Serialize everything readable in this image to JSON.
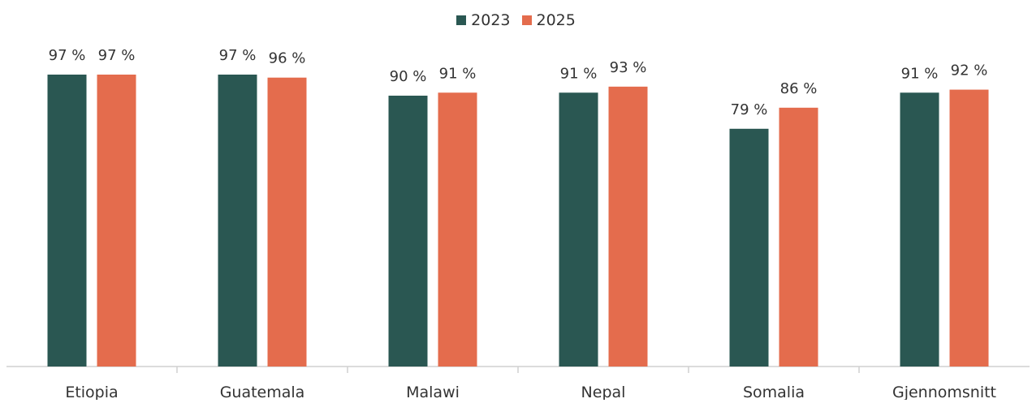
{
  "chart_data": {
    "type": "bar",
    "categories": [
      "Etiopia",
      "Guatemala",
      "Malawi",
      "Nepal",
      "Somalia",
      "Gjennomsnitt"
    ],
    "series": [
      {
        "name": "2023",
        "color": "#2a5752",
        "values": [
          97,
          97,
          90,
          91,
          79,
          91
        ],
        "labels": [
          "97 %",
          "97 %",
          "90 %",
          "91 %",
          "79 %",
          "91 %"
        ]
      },
      {
        "name": "2025",
        "color": "#e46c4d",
        "values": [
          97,
          96,
          91,
          93,
          86,
          92
        ],
        "labels": [
          "97 %",
          "96 %",
          "91 %",
          "93 %",
          "86 %",
          "92 %"
        ]
      }
    ],
    "ylim": [
      0,
      100
    ],
    "grid": false,
    "legend_position": "top-center"
  }
}
